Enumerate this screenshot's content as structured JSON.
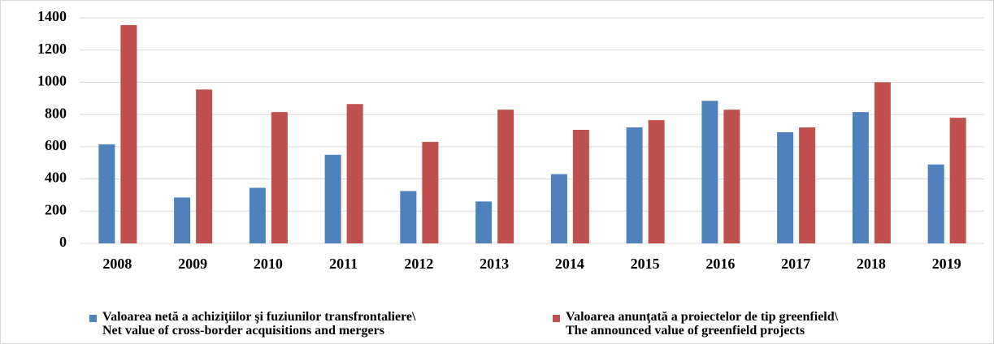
{
  "chart_data": {
    "type": "bar",
    "categories": [
      "2008",
      "2009",
      "2010",
      "2011",
      "2012",
      "2013",
      "2014",
      "2015",
      "2016",
      "2017",
      "2018",
      "2019"
    ],
    "series": [
      {
        "name": "Valoarea netă a achiziţiilor şi fuziunilor transfrontaliere\\\nNet value of cross-border acquisitions and mergers",
        "color": "#4f81bd",
        "values": [
          615,
          285,
          345,
          550,
          325,
          260,
          430,
          720,
          885,
          690,
          815,
          490
        ]
      },
      {
        "name": "Valoarea anunţată a proiectelor de tip greenfield\\\nThe announced value of greenfield projects",
        "color": "#c0504d",
        "values": [
          1355,
          955,
          815,
          865,
          630,
          830,
          705,
          765,
          830,
          720,
          1000,
          780
        ]
      }
    ],
    "ylim": [
      0,
      1400
    ],
    "yticks": [
      0,
      200,
      400,
      600,
      800,
      1000,
      1200,
      1400
    ],
    "grid": true,
    "legend": "bottom"
  }
}
